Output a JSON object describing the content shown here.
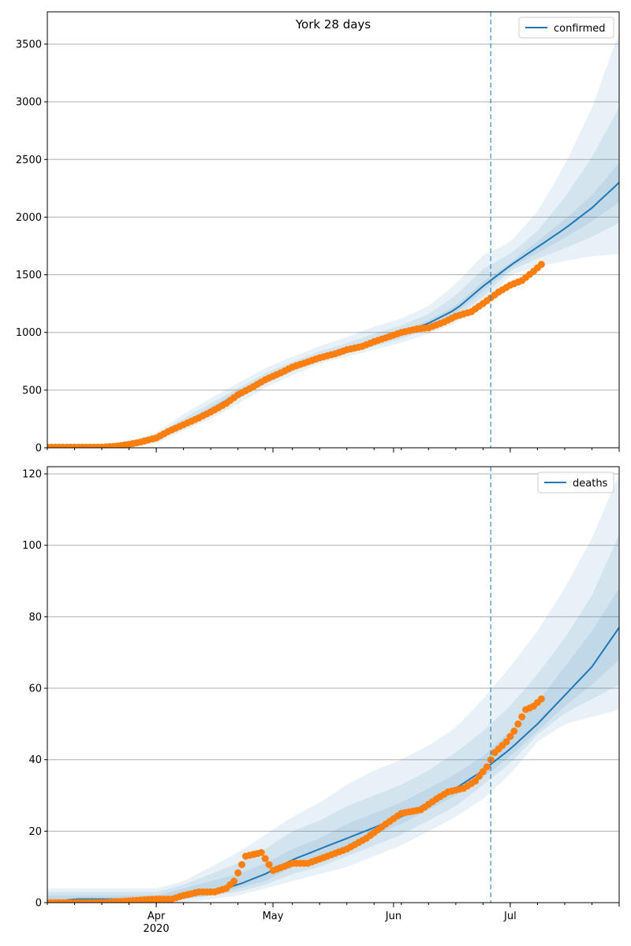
{
  "colors": {
    "model": "#1f77b4",
    "observed": "#ff7f0e",
    "band": "#1f77b4",
    "grid": "#b0b0b0",
    "vline": "#1f77b4"
  },
  "x_axis": {
    "ticks": [
      {
        "date": "2020-04-01",
        "label": "Apr",
        "sublabel": "2020"
      },
      {
        "date": "2020-05-01",
        "label": "May",
        "sublabel": ""
      },
      {
        "date": "2020-06-01",
        "label": "Jun",
        "sublabel": ""
      },
      {
        "date": "2020-07-01",
        "label": "Jul",
        "sublabel": ""
      }
    ]
  },
  "chart_data": [
    {
      "type": "line",
      "title": "York 28 days",
      "legend": {
        "label": "confirmed",
        "placement": "top-right"
      },
      "xlim": [
        "2020-03-04",
        "2020-07-29"
      ],
      "ylim": [
        0,
        3780
      ],
      "yticks": [
        0,
        500,
        1000,
        1500,
        2000,
        2500,
        3000,
        3500
      ],
      "grid": true,
      "forecast_start": "2020-06-26",
      "model": {
        "name": "confirmed",
        "x": [
          "2020-03-04",
          "2020-03-18",
          "2020-03-25",
          "2020-04-01",
          "2020-04-08",
          "2020-04-15",
          "2020-04-22",
          "2020-04-29",
          "2020-05-06",
          "2020-05-13",
          "2020-05-20",
          "2020-05-27",
          "2020-06-03",
          "2020-06-10",
          "2020-06-17",
          "2020-06-24",
          "2020-07-01",
          "2020-07-08",
          "2020-07-15",
          "2020-07-22",
          "2020-07-29"
        ],
        "y": [
          5,
          10,
          40,
          80,
          210,
          330,
          470,
          600,
          700,
          790,
          850,
          920,
          990,
          1080,
          1200,
          1400,
          1580,
          1740,
          1900,
          2080,
          2300
        ],
        "bands": [
          {
            "lower": [
              0,
              5,
              20,
              40,
              150,
              250,
              380,
              520,
              630,
              730,
              790,
              850,
              910,
              990,
              1080,
              1230,
              1500,
              1570,
              1620,
              1660,
              1680
            ],
            "upper": [
              10,
              20,
              60,
              130,
              290,
              430,
              560,
              690,
              790,
              880,
              960,
              1050,
              1120,
              1230,
              1420,
              1670,
              1780,
              2050,
              2450,
              2950,
              3600
            ]
          },
          {
            "lower": [
              2,
              7,
              28,
              55,
              175,
              285,
              420,
              555,
              660,
              755,
              815,
              880,
              945,
              1030,
              1135,
              1310,
              1535,
              1640,
              1730,
              1830,
              1950
            ],
            "upper": [
              8,
              15,
              50,
              105,
              255,
              385,
              515,
              645,
              745,
              835,
              905,
              990,
              1060,
              1160,
              1320,
              1550,
              1680,
              1880,
              2170,
              2520,
              2950
            ]
          },
          {
            "lower": [
              3,
              8,
              34,
              68,
              193,
              308,
              445,
              578,
              680,
              772,
              833,
              902,
              968,
              1055,
              1168,
              1358,
              1558,
              1690,
              1820,
              1965,
              2130
            ],
            "upper": [
              7,
              12,
              46,
              92,
              228,
              352,
              495,
              622,
              720,
              808,
              867,
              938,
              1012,
              1105,
              1232,
              1440,
              1603,
              1790,
              1980,
              2190,
              2470
            ]
          }
        ]
      },
      "observed": {
        "x": [
          "2020-03-04",
          "2020-03-11",
          "2020-03-18",
          "2020-03-22",
          "2020-03-25",
          "2020-03-28",
          "2020-04-01",
          "2020-04-04",
          "2020-04-08",
          "2020-04-12",
          "2020-04-15",
          "2020-04-19",
          "2020-04-22",
          "2020-04-26",
          "2020-04-29",
          "2020-05-03",
          "2020-05-06",
          "2020-05-10",
          "2020-05-13",
          "2020-05-17",
          "2020-05-20",
          "2020-05-24",
          "2020-05-27",
          "2020-05-31",
          "2020-06-03",
          "2020-06-07",
          "2020-06-10",
          "2020-06-14",
          "2020-06-17",
          "2020-06-21",
          "2020-06-24",
          "2020-06-28",
          "2020-07-01",
          "2020-07-04",
          "2020-07-07",
          "2020-07-09"
        ],
        "y": [
          5,
          5,
          5,
          15,
          30,
          50,
          85,
          140,
          200,
          260,
          310,
          385,
          460,
          530,
          590,
          650,
          700,
          745,
          780,
          815,
          850,
          880,
          920,
          965,
          1000,
          1030,
          1040,
          1090,
          1140,
          1180,
          1250,
          1350,
          1410,
          1450,
          1530,
          1590
        ]
      }
    },
    {
      "type": "line",
      "title": "",
      "legend": {
        "label": "deaths",
        "placement": "top-right"
      },
      "xlim": [
        "2020-03-04",
        "2020-07-29"
      ],
      "ylim": [
        0,
        122
      ],
      "yticks": [
        0,
        20,
        40,
        60,
        80,
        100,
        120
      ],
      "grid": true,
      "forecast_start": "2020-06-26",
      "model": {
        "name": "deaths",
        "x": [
          "2020-03-04",
          "2020-03-11",
          "2020-03-18",
          "2020-03-25",
          "2020-04-01",
          "2020-04-08",
          "2020-04-15",
          "2020-04-22",
          "2020-04-29",
          "2020-05-06",
          "2020-05-13",
          "2020-05-20",
          "2020-05-27",
          "2020-06-03",
          "2020-06-10",
          "2020-06-17",
          "2020-06-24",
          "2020-07-01",
          "2020-07-08",
          "2020-07-15",
          "2020-07-22",
          "2020-07-29"
        ],
        "y": [
          0,
          1,
          1,
          1,
          1,
          2,
          3,
          5,
          8,
          12,
          15,
          18,
          21,
          24,
          28,
          32,
          37,
          43,
          50,
          58,
          66,
          77
        ],
        "bands": [
          {
            "lower": [
              0,
              0,
              0,
              0,
              0,
              0,
              1,
              2,
              4,
              6,
              8,
              10,
              13,
              16,
              20,
              24,
              29,
              36,
              45,
              50,
              52,
              54
            ],
            "upper": [
              4,
              4,
              4,
              4,
              4,
              6,
              10,
              14,
              19,
              24,
              28,
              33,
              37,
              40,
              44,
              49,
              57,
              66,
              76,
              88,
              102,
              120
            ]
          },
          {
            "lower": [
              0,
              0,
              0,
              0,
              0,
              1,
              2,
              3,
              5,
              8,
              10,
              13,
              16,
              19,
              23,
              27,
              33,
              39,
              47,
              53,
              57,
              61
            ],
            "upper": [
              3,
              3,
              3,
              3,
              3,
              5,
              8,
              11,
              15,
              20,
              23,
              27,
              30,
              33,
              37,
              42,
              48,
              55,
              64,
              74,
              86,
              103
            ]
          },
          {
            "lower": [
              0,
              0,
              1,
              1,
              1,
              1,
              2,
              4,
              6,
              10,
              13,
              15,
              19,
              22,
              26,
              30,
              35,
              41,
              48,
              55,
              61,
              68
            ],
            "upper": [
              2,
              2,
              2,
              2,
              2,
              4,
              6,
              8,
              11,
              15,
              18,
              22,
              25,
              28,
              32,
              36,
              41,
              48,
              56,
              66,
              76,
              88
            ]
          }
        ]
      },
      "observed": {
        "x": [
          "2020-03-04",
          "2020-03-18",
          "2020-04-01",
          "2020-04-05",
          "2020-04-08",
          "2020-04-12",
          "2020-04-16",
          "2020-04-19",
          "2020-04-21",
          "2020-04-24",
          "2020-04-28",
          "2020-05-01",
          "2020-05-06",
          "2020-05-10",
          "2020-05-15",
          "2020-05-20",
          "2020-05-25",
          "2020-05-30",
          "2020-06-03",
          "2020-06-08",
          "2020-06-12",
          "2020-06-15",
          "2020-06-19",
          "2020-06-22",
          "2020-06-25",
          "2020-06-27",
          "2020-06-30",
          "2020-07-02",
          "2020-07-05",
          "2020-07-07",
          "2020-07-09"
        ],
        "y": [
          0,
          0,
          1,
          1,
          2,
          3,
          3,
          4,
          6,
          13,
          14,
          9,
          11,
          11,
          13,
          15,
          18,
          22,
          25,
          26,
          29,
          31,
          32,
          34,
          38,
          42,
          45,
          48,
          54,
          55,
          57
        ]
      }
    }
  ]
}
